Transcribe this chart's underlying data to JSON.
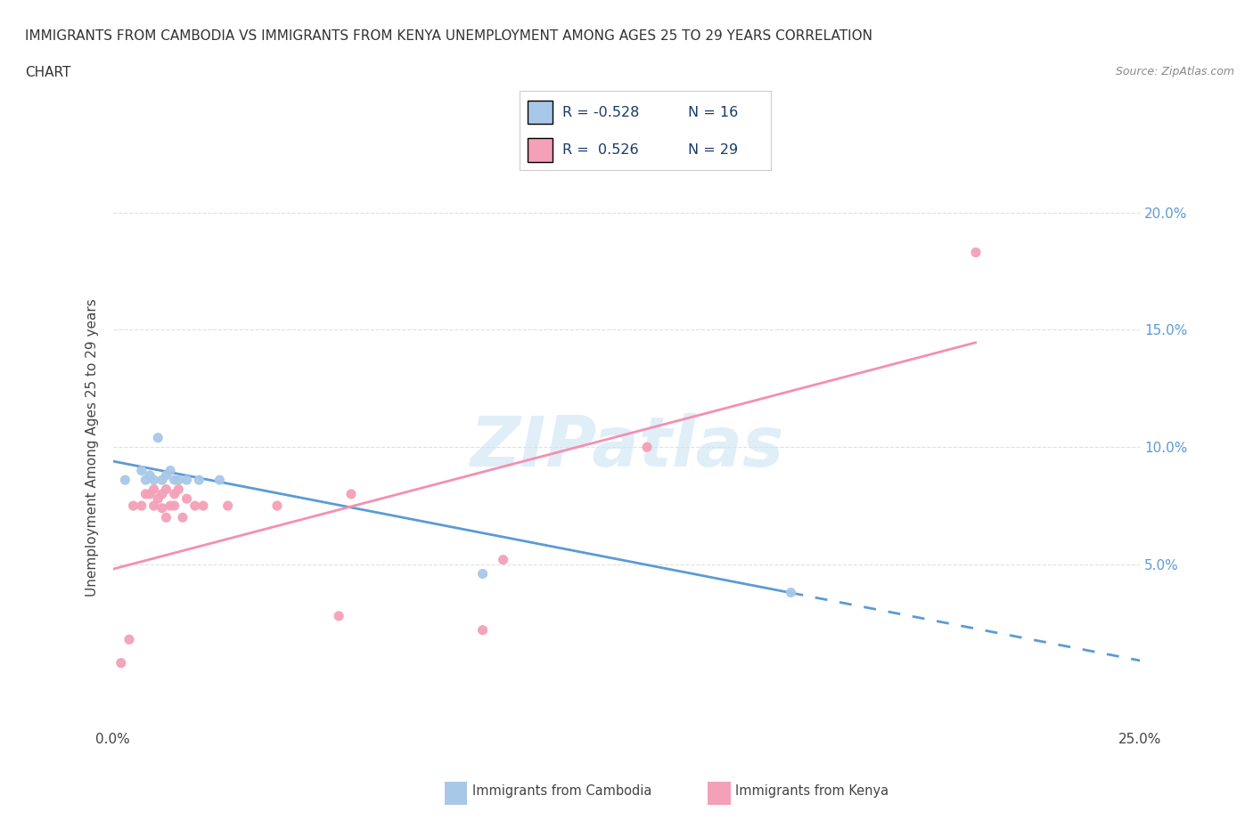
{
  "title_line1": "IMMIGRANTS FROM CAMBODIA VS IMMIGRANTS FROM KENYA UNEMPLOYMENT AMONG AGES 25 TO 29 YEARS CORRELATION",
  "title_line2": "CHART",
  "source": "Source: ZipAtlas.com",
  "ylabel": "Unemployment Among Ages 25 to 29 years",
  "xlim": [
    0.0,
    0.25
  ],
  "ylim": [
    -0.02,
    0.22
  ],
  "xticks": [
    0.0,
    0.025,
    0.05,
    0.075,
    0.1,
    0.125,
    0.15,
    0.175,
    0.2,
    0.225,
    0.25
  ],
  "xticklabels": [
    "0.0%",
    "",
    "",
    "",
    "",
    "",
    "",
    "",
    "",
    "",
    "25.0%"
  ],
  "yticks": [
    0.05,
    0.1,
    0.15,
    0.2
  ],
  "yticklabels": [
    "5.0%",
    "10.0%",
    "15.0%",
    "20.0%"
  ],
  "watermark_text": "ZIPatlas",
  "R_cambodia": -0.528,
  "N_cambodia": 16,
  "R_kenya": 0.526,
  "N_kenya": 29,
  "cambodia_dot_color": "#a8c8e8",
  "kenya_dot_color": "#f4a0b8",
  "trend_cambodia_color": "#5b9bd5",
  "trend_kenya_color": "#f48fb1",
  "bg_color": "#ffffff",
  "grid_color": "#e0e0e0",
  "axis_label_color": "#5b9bd5",
  "title_color": "#333333",
  "scatter_cambodia_x": [
    0.003,
    0.007,
    0.008,
    0.009,
    0.01,
    0.011,
    0.012,
    0.013,
    0.014,
    0.015,
    0.016,
    0.018,
    0.021,
    0.026,
    0.09,
    0.165
  ],
  "scatter_cambodia_y": [
    0.086,
    0.09,
    0.086,
    0.088,
    0.086,
    0.104,
    0.086,
    0.088,
    0.09,
    0.086,
    0.086,
    0.086,
    0.086,
    0.086,
    0.046,
    0.038
  ],
  "scatter_kenya_x": [
    0.002,
    0.004,
    0.005,
    0.007,
    0.008,
    0.009,
    0.01,
    0.01,
    0.011,
    0.012,
    0.012,
    0.013,
    0.013,
    0.014,
    0.015,
    0.015,
    0.016,
    0.017,
    0.018,
    0.02,
    0.022,
    0.028,
    0.04,
    0.055,
    0.058,
    0.09,
    0.095,
    0.13,
    0.21
  ],
  "scatter_kenya_y": [
    0.008,
    0.018,
    0.075,
    0.075,
    0.08,
    0.08,
    0.075,
    0.082,
    0.078,
    0.074,
    0.08,
    0.082,
    0.07,
    0.075,
    0.075,
    0.08,
    0.082,
    0.07,
    0.078,
    0.075,
    0.075,
    0.075,
    0.075,
    0.028,
    0.08,
    0.022,
    0.052,
    0.1,
    0.183
  ],
  "trend_cambodia_intercept": 0.094,
  "trend_cambodia_slope": -0.34,
  "trend_kenya_intercept": 0.048,
  "trend_kenya_slope": 0.46
}
